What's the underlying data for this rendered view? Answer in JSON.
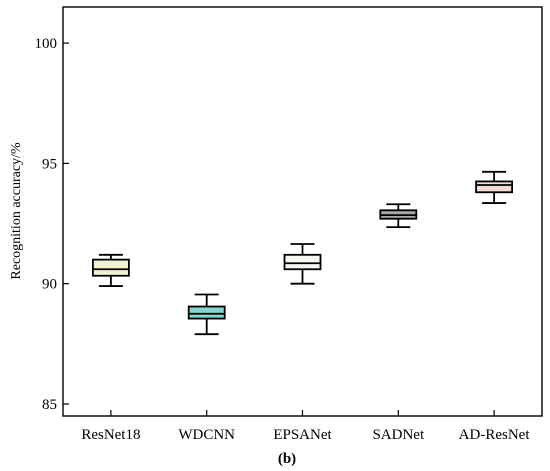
{
  "chart_data": {
    "type": "box",
    "panel_label": "(b)",
    "title": "",
    "xlabel": "",
    "ylabel": "Recognition accuracy/%",
    "ylim": [
      84.5,
      101.5
    ],
    "yticks": [
      85,
      90,
      95,
      100
    ],
    "categories": [
      "ResNet18",
      "WDCNN",
      "EPSANet",
      "SADNet",
      "AD-ResNet"
    ],
    "boxes": [
      {
        "label": "ResNet18",
        "whisker_low": 89.9,
        "q1": 90.33,
        "median": 90.6,
        "q3": 91.0,
        "whisker_high": 91.2,
        "fill": "#f1f3d2"
      },
      {
        "label": "WDCNN",
        "whisker_low": 87.9,
        "q1": 88.55,
        "median": 88.75,
        "q3": 89.05,
        "whisker_high": 89.55,
        "fill": "#86d3d1"
      },
      {
        "label": "EPSANet",
        "whisker_low": 90.0,
        "q1": 90.6,
        "median": 90.85,
        "q3": 91.2,
        "whisker_high": 91.65,
        "fill": "#f6f6f3"
      },
      {
        "label": "SADNet",
        "whisker_low": 92.35,
        "q1": 92.7,
        "median": 92.85,
        "q3": 93.05,
        "whisker_high": 93.3,
        "fill": "#a7a7a7"
      },
      {
        "label": "AD-ResNet",
        "whisker_low": 93.35,
        "q1": 93.8,
        "median": 94.1,
        "q3": 94.25,
        "whisker_high": 94.65,
        "fill": "#f4ddd7"
      }
    ],
    "grid": false,
    "legend": "none"
  }
}
